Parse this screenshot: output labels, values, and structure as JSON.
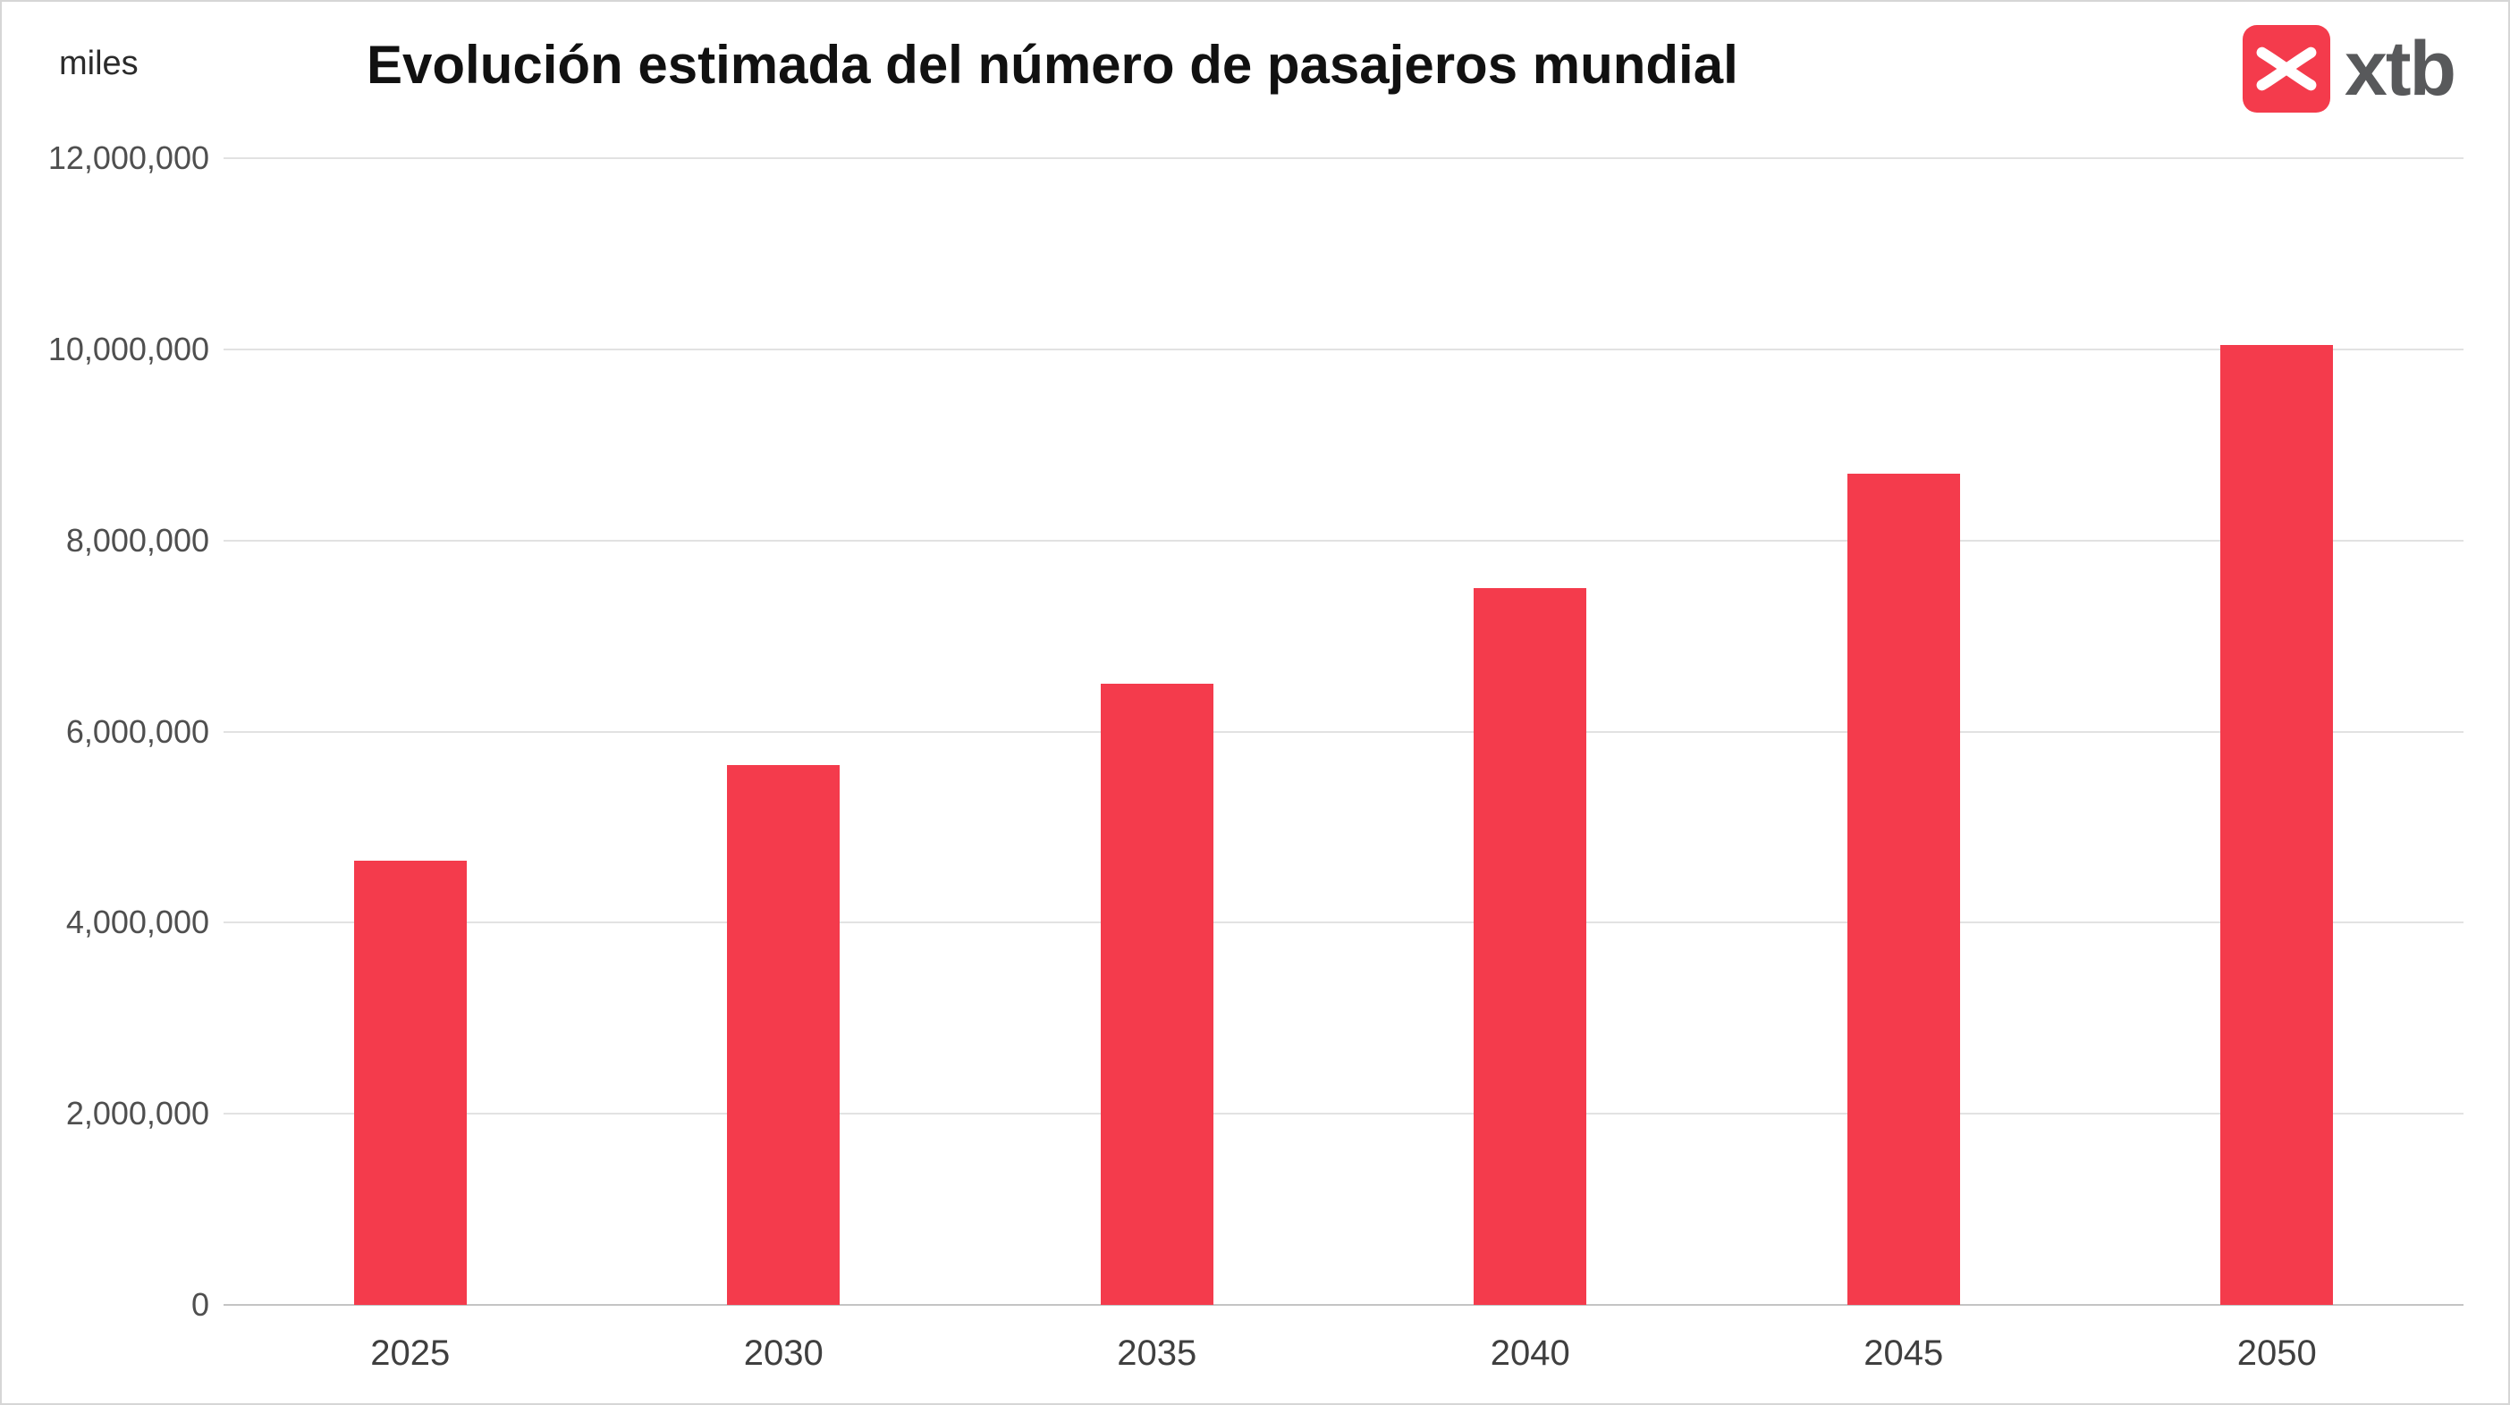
{
  "brand": {
    "name": "xtb",
    "color": "#f43b4c",
    "text_color": "#58595b",
    "logo_icon": "xtb-x-icon"
  },
  "chart_data": {
    "type": "bar",
    "title": "Evolución estimada del número de pasajeros mundial",
    "ylabel": "miles",
    "xlabel": "",
    "categories": [
      "2025",
      "2030",
      "2035",
      "2040",
      "2045",
      "2050"
    ],
    "values": [
      4650000,
      5650000,
      6500000,
      7500000,
      8700000,
      10050000
    ],
    "ylim": [
      0,
      12000000
    ],
    "yticks": [
      0,
      2000000,
      4000000,
      6000000,
      8000000,
      10000000,
      12000000
    ],
    "ytick_labels": [
      "0",
      "2,000,000",
      "4,000,000",
      "6,000,000",
      "8,000,000",
      "10,000,000",
      "12,000,000"
    ],
    "bar_color": "#f43b4c",
    "grid": true,
    "legend": false
  }
}
